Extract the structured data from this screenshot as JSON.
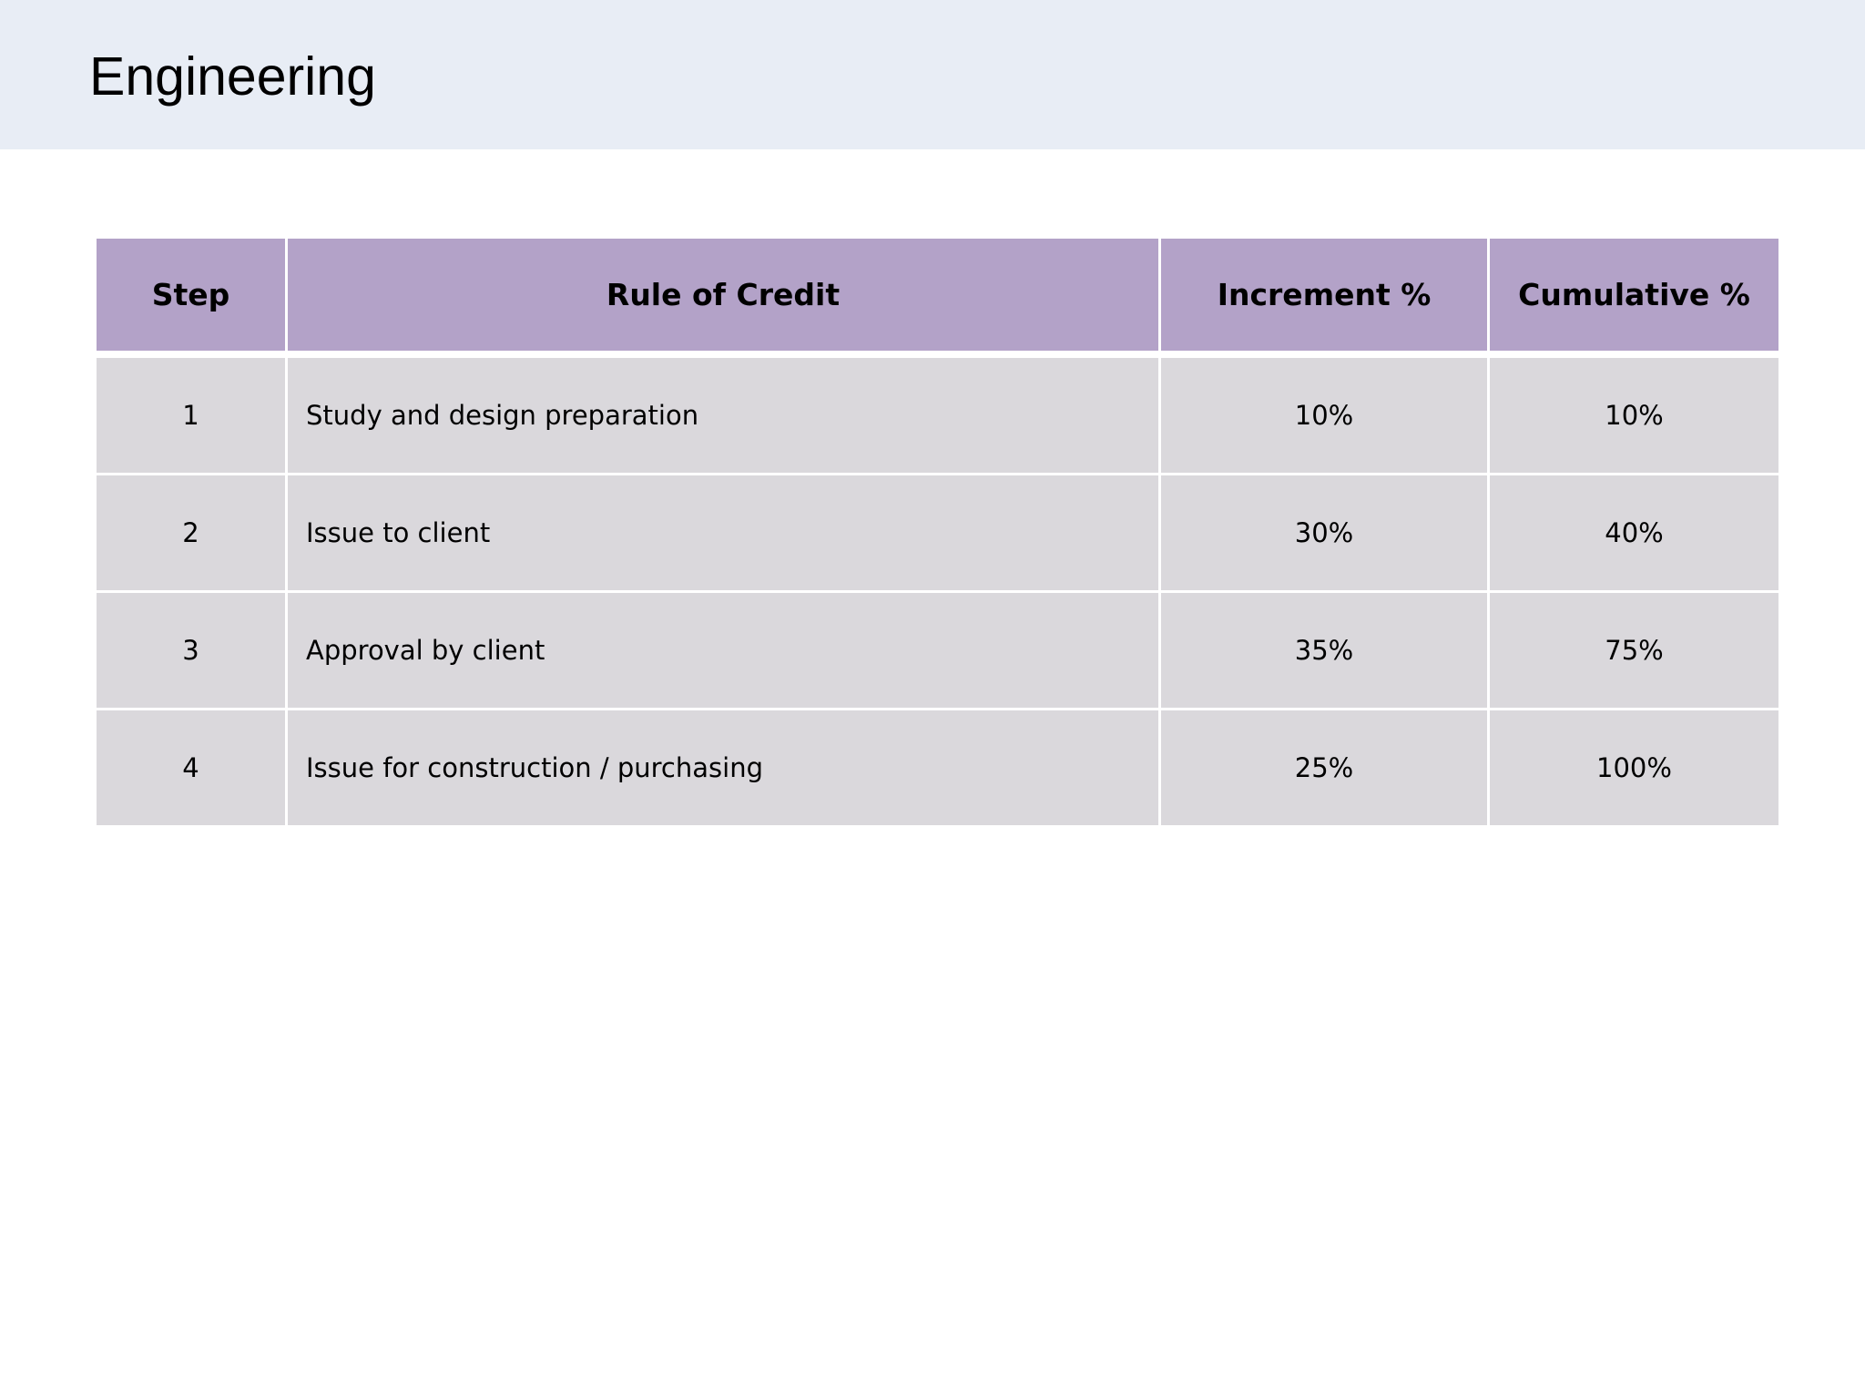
{
  "page": {
    "title": "Engineering"
  },
  "table": {
    "headers": {
      "step": "Step",
      "rule": "Rule of Credit",
      "increment": "Increment %",
      "cumulative": "Cumulative %"
    },
    "rows": [
      {
        "step": "1",
        "rule": "Study and design preparation",
        "increment": "10%",
        "cumulative": "10%"
      },
      {
        "step": "2",
        "rule": "Issue to client",
        "increment": "30%",
        "cumulative": "40%"
      },
      {
        "step": "3",
        "rule": "Approval by client",
        "increment": "35%",
        "cumulative": "75%"
      },
      {
        "step": "4",
        "rule": "Issue for construction / purchasing",
        "increment": "25%",
        "cumulative": "100%"
      }
    ]
  },
  "colors": {
    "title_band": "#e8edf5",
    "header_fill": "#b3a2c8",
    "cell_fill": "#dad8dc"
  }
}
